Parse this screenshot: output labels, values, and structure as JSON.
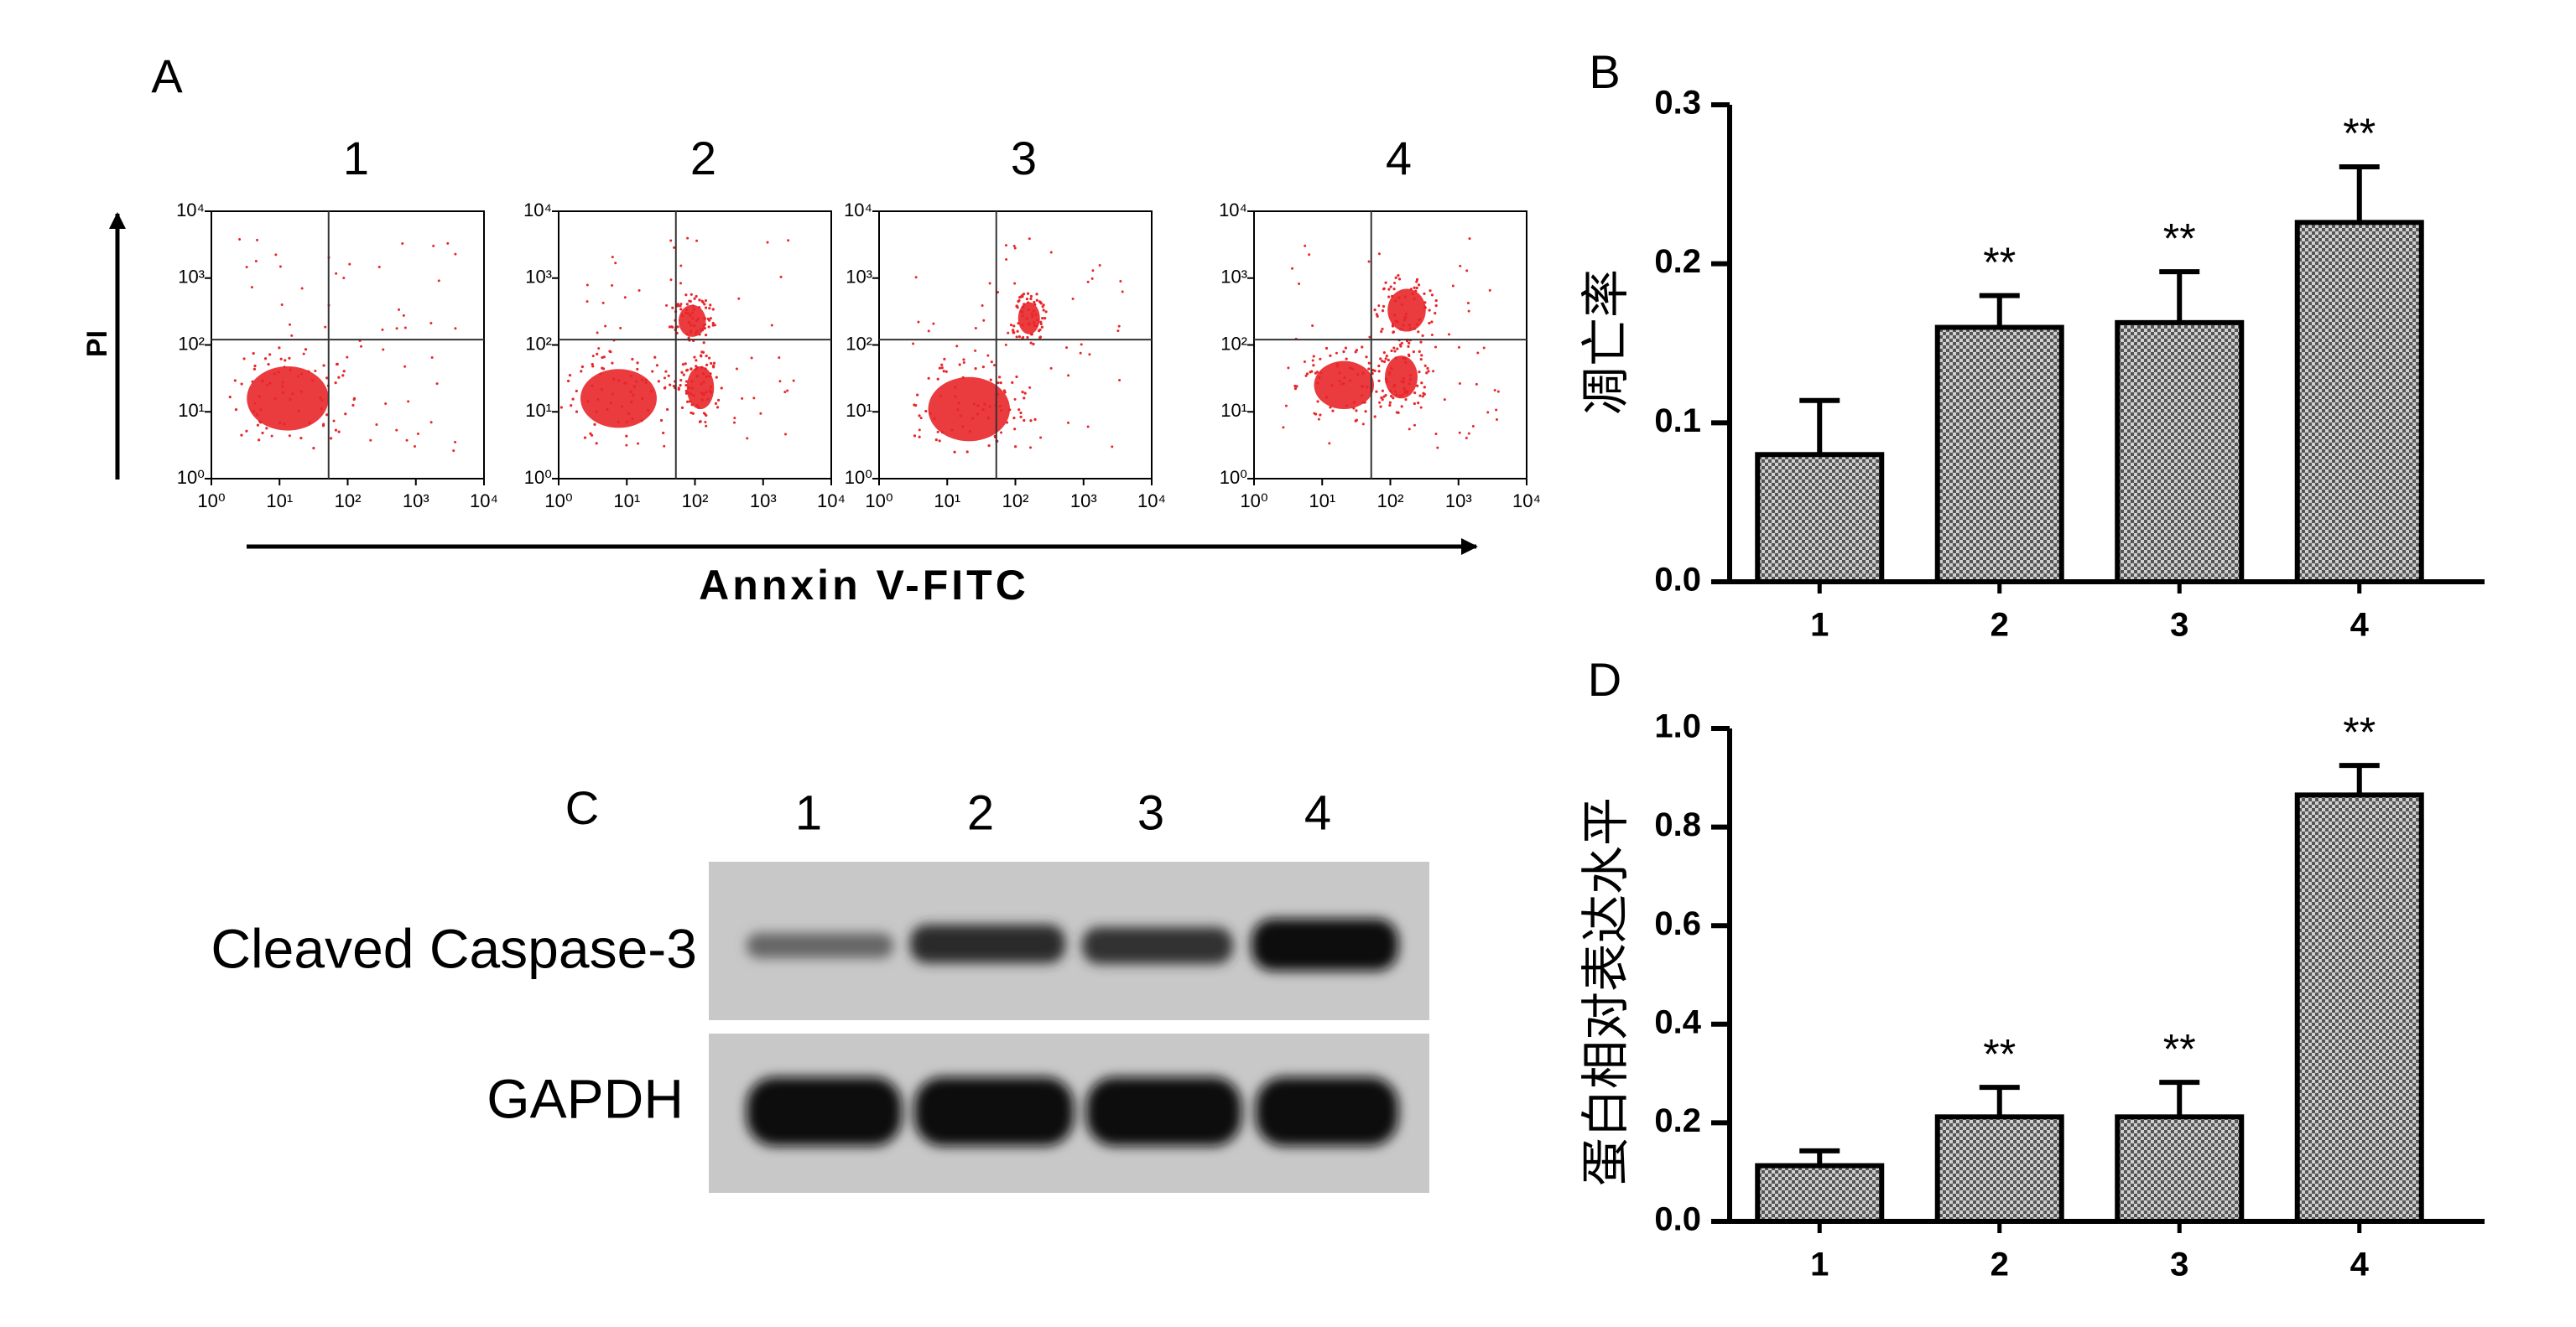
{
  "chart_data": [
    {
      "type": "bar",
      "panel_label": "B",
      "ylabel": "凋亡率",
      "categories": [
        "1",
        "2",
        "3",
        "4"
      ],
      "values": [
        0.08,
        0.16,
        0.163,
        0.226
      ],
      "errors": [
        0.034,
        0.02,
        0.032,
        0.035
      ],
      "significance": [
        null,
        "**",
        "**",
        "**"
      ],
      "ylim": [
        0,
        0.3
      ],
      "yticks": [
        {
          "value": 0,
          "label": "0.0"
        },
        0.1,
        0.2,
        0.3
      ],
      "color": "#000000"
    },
    {
      "type": "bar",
      "panel_label": "D",
      "ylabel": "蛋白相对表达水平",
      "categories": [
        "1",
        "2",
        "3",
        "4"
      ],
      "values": [
        0.113,
        0.212,
        0.212,
        0.865
      ],
      "errors": [
        0.03,
        0.06,
        0.07,
        0.06
      ],
      "significance": [
        null,
        "**",
        "**",
        "**"
      ],
      "ylim": [
        0,
        1
      ],
      "yticks": [
        {
          "value": 0,
          "label": "0.0"
        },
        0.2,
        0.4,
        0.6,
        0.8,
        {
          "value": 1,
          "label": "1.0"
        }
      ],
      "color": "#000000"
    }
  ],
  "flow_cytometry": {
    "label": "A",
    "samples": [
      "1",
      "2",
      "3",
      "4"
    ],
    "x_axis_label": "Annxin V-FITC",
    "y_axis_label": "PI",
    "tick_labels": [
      "10⁰",
      "10¹",
      "10²",
      "10³",
      "10⁴"
    ]
  },
  "western_blot": {
    "label": "C",
    "lanes": [
      "1",
      "2",
      "3",
      "4"
    ],
    "proteins": [
      "Cleaved Caspase-3",
      "GAPDH"
    ]
  }
}
